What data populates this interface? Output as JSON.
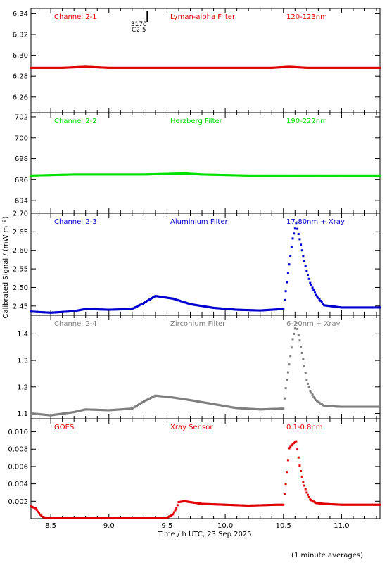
{
  "chart_data": {
    "type": "scatter",
    "xlabel": "Time / h UTC, 23 Sep 2025",
    "ylabel": "Calibrated Signal / (mW m⁻²)",
    "footnote": "(1 minute averages)",
    "xlim": [
      8.33,
      11.33
    ],
    "xticks": [
      "8.5",
      "9.0",
      "9.5",
      "10.0",
      "10.5",
      "11.0"
    ],
    "marker": {
      "time": 9.33,
      "label1": "3170",
      "label2": "C2.5"
    },
    "panels": [
      {
        "channel": "Channel 2-1",
        "filter": "Lyman-alpha Filter",
        "band": "120-123nm",
        "color": "#e00000",
        "ylim": [
          6.245,
          6.345
        ],
        "yticks": [
          "6.26",
          "6.28",
          "6.30",
          "6.32",
          "6.34"
        ],
        "x": [
          8.33,
          8.6,
          8.8,
          9.0,
          9.3,
          9.6,
          10.0,
          10.4,
          10.55,
          10.7,
          11.0,
          11.33
        ],
        "y": [
          6.288,
          6.288,
          6.289,
          6.288,
          6.288,
          6.288,
          6.288,
          6.288,
          6.289,
          6.288,
          6.288,
          6.288
        ]
      },
      {
        "channel": "Channel 2-2",
        "filter": "Herzberg Filter",
        "band": "190-222nm",
        "color": "#00e000",
        "ylim": [
          692.8,
          702.4
        ],
        "yticks": [
          "694",
          "696",
          "698",
          "700",
          "702"
        ],
        "x": [
          8.33,
          8.7,
          9.0,
          9.3,
          9.65,
          9.8,
          10.2,
          10.6,
          11.0,
          11.33
        ],
        "y": [
          696.4,
          696.5,
          696.5,
          696.5,
          696.6,
          696.5,
          696.4,
          696.4,
          696.4,
          696.4
        ]
      },
      {
        "channel": "Channel 2-3",
        "filter": "Aluminium Filter",
        "band": "17-80nm + Xray",
        "color": "#0000d0",
        "ylim": [
          2.425,
          2.7
        ],
        "yticks": [
          "2.45",
          "2.50",
          "2.55",
          "2.60",
          "2.65",
          "2.70"
        ],
        "x": [
          8.33,
          8.5,
          8.7,
          8.8,
          9.0,
          9.2,
          9.3,
          9.4,
          9.55,
          9.7,
          9.9,
          10.1,
          10.3,
          10.5,
          10.52,
          10.55,
          10.58,
          10.61,
          10.64,
          10.67,
          10.7,
          10.73,
          10.78,
          10.85,
          11.0,
          11.33
        ],
        "y": [
          2.435,
          2.432,
          2.436,
          2.442,
          2.44,
          2.442,
          2.458,
          2.477,
          2.47,
          2.455,
          2.445,
          2.44,
          2.438,
          2.442,
          2.49,
          2.562,
          2.632,
          2.672,
          2.63,
          2.585,
          2.545,
          2.512,
          2.48,
          2.452,
          2.446,
          2.446
        ]
      },
      {
        "channel": "Channel 2-4",
        "filter": "Zirconium Filter",
        "band": "6-20nm + Xray",
        "color": "#7f7f7f",
        "ylim": [
          1.08,
          1.47
        ],
        "yticks": [
          "1.1",
          "1.2",
          "1.3",
          "1.4"
        ],
        "x": [
          8.33,
          8.5,
          8.7,
          8.8,
          9.0,
          9.2,
          9.3,
          9.4,
          9.55,
          9.7,
          9.9,
          10.1,
          10.3,
          10.5,
          10.52,
          10.55,
          10.58,
          10.61,
          10.64,
          10.67,
          10.7,
          10.73,
          10.78,
          10.85,
          11.0,
          11.33
        ],
        "y": [
          1.1,
          1.093,
          1.105,
          1.115,
          1.112,
          1.118,
          1.145,
          1.167,
          1.16,
          1.15,
          1.135,
          1.12,
          1.115,
          1.118,
          1.195,
          1.285,
          1.38,
          1.44,
          1.375,
          1.305,
          1.225,
          1.185,
          1.15,
          1.128,
          1.125,
          1.125
        ]
      },
      {
        "channel": "GOES",
        "filter": "Xray Sensor",
        "band": "0.1-0.8nm",
        "color": "#e00000",
        "ylim": [
          0.0,
          0.0115
        ],
        "yticks": [
          "0.002",
          "0.004",
          "0.006",
          "0.008",
          "0.010"
        ],
        "x": [
          8.33,
          8.37,
          8.4,
          8.43,
          8.46,
          8.5,
          9.0,
          9.5,
          9.55,
          9.58,
          9.6,
          9.65,
          9.8,
          10.0,
          10.2,
          10.45,
          10.5,
          10.52,
          10.55,
          10.58,
          10.61,
          10.64,
          10.67,
          10.7,
          10.73,
          10.78,
          10.85,
          11.0,
          11.33
        ],
        "y": [
          0.0014,
          0.0012,
          0.0006,
          0.0002,
          0.0001,
          0.0001,
          0.0001,
          0.0001,
          0.0005,
          0.0012,
          0.0019,
          0.002,
          0.0017,
          0.0016,
          0.0015,
          0.0016,
          0.0016,
          0.004,
          0.0081,
          0.0086,
          0.0089,
          0.0061,
          0.0042,
          0.003,
          0.0022,
          0.0018,
          0.0017,
          0.0016,
          0.0016
        ]
      }
    ]
  }
}
